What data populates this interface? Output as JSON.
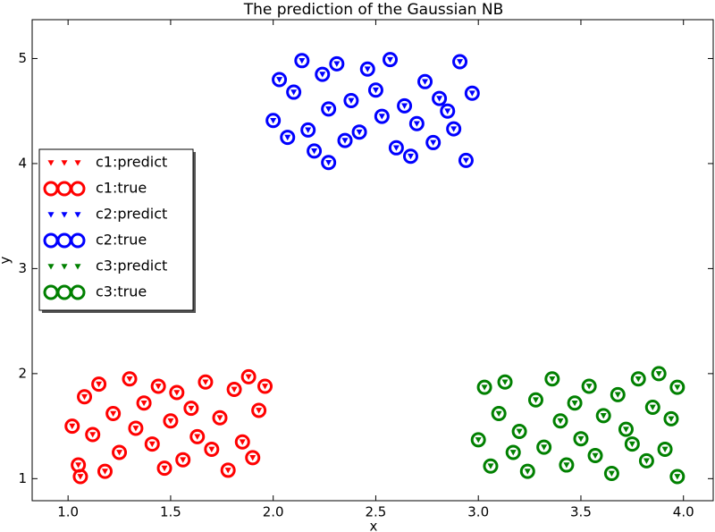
{
  "chart_data": {
    "type": "scatter",
    "title": "The prediction of the Gaussian NB",
    "x_label": "x",
    "y_label": "y",
    "xlim": [
      0.825,
      4.145
    ],
    "ylim": [
      0.79,
      5.37
    ],
    "xticks": [
      {
        "value": 1.0,
        "label": "1.0"
      },
      {
        "value": 1.5,
        "label": "1.5"
      },
      {
        "value": 2.0,
        "label": "2.0"
      },
      {
        "value": 2.5,
        "label": "2.5"
      },
      {
        "value": 3.0,
        "label": "3.0"
      },
      {
        "value": 3.5,
        "label": "3.5"
      },
      {
        "value": 4.0,
        "label": "4.0"
      }
    ],
    "yticks": [
      1,
      2,
      3,
      4,
      5
    ],
    "grid": false,
    "legend": "center left",
    "series": [
      {
        "name": "c1:predict",
        "color": "#ff0000",
        "marker": "v",
        "x": [
          1.02,
          1.05,
          1.08,
          1.12,
          1.15,
          1.18,
          1.22,
          1.25,
          1.3,
          1.33,
          1.37,
          1.41,
          1.44,
          1.47,
          1.5,
          1.53,
          1.56,
          1.6,
          1.63,
          1.67,
          1.7,
          1.74,
          1.78,
          1.81,
          1.85,
          1.88,
          1.9,
          1.93,
          1.96,
          1.06
        ],
        "values": [
          1.5,
          1.13,
          1.78,
          1.42,
          1.9,
          1.07,
          1.62,
          1.25,
          1.95,
          1.48,
          1.72,
          1.33,
          1.88,
          1.1,
          1.55,
          1.82,
          1.18,
          1.67,
          1.4,
          1.92,
          1.28,
          1.58,
          1.08,
          1.85,
          1.35,
          1.97,
          1.2,
          1.65,
          1.88,
          1.02
        ]
      },
      {
        "name": "c1:true",
        "color": "#ff0000",
        "marker": "o",
        "x": [
          1.02,
          1.05,
          1.08,
          1.12,
          1.15,
          1.18,
          1.22,
          1.25,
          1.3,
          1.33,
          1.37,
          1.41,
          1.44,
          1.47,
          1.5,
          1.53,
          1.56,
          1.6,
          1.63,
          1.67,
          1.7,
          1.74,
          1.78,
          1.81,
          1.85,
          1.88,
          1.9,
          1.93,
          1.96,
          1.06
        ],
        "values": [
          1.5,
          1.13,
          1.78,
          1.42,
          1.9,
          1.07,
          1.62,
          1.25,
          1.95,
          1.48,
          1.72,
          1.33,
          1.88,
          1.1,
          1.55,
          1.82,
          1.18,
          1.67,
          1.4,
          1.92,
          1.28,
          1.58,
          1.08,
          1.85,
          1.35,
          1.97,
          1.2,
          1.65,
          1.88,
          1.02
        ]
      },
      {
        "name": "c2:predict",
        "color": "#0000ff",
        "marker": "v",
        "x": [
          2.0,
          2.03,
          2.07,
          2.1,
          2.14,
          2.17,
          2.2,
          2.24,
          2.27,
          2.31,
          2.35,
          2.38,
          2.42,
          2.46,
          2.5,
          2.53,
          2.57,
          2.6,
          2.64,
          2.67,
          2.7,
          2.74,
          2.78,
          2.81,
          2.85,
          2.88,
          2.91,
          2.94,
          2.97,
          2.27
        ],
        "values": [
          4.41,
          4.8,
          4.25,
          4.68,
          4.98,
          4.32,
          4.12,
          4.85,
          4.52,
          4.95,
          4.22,
          4.6,
          4.3,
          4.9,
          4.7,
          4.45,
          4.99,
          4.15,
          4.55,
          4.07,
          4.38,
          4.78,
          4.2,
          4.62,
          4.5,
          4.33,
          4.97,
          4.03,
          4.67,
          4.01
        ]
      },
      {
        "name": "c2:true",
        "color": "#0000ff",
        "marker": "o",
        "x": [
          2.0,
          2.03,
          2.07,
          2.1,
          2.14,
          2.17,
          2.2,
          2.24,
          2.27,
          2.31,
          2.35,
          2.38,
          2.42,
          2.46,
          2.5,
          2.53,
          2.57,
          2.6,
          2.64,
          2.67,
          2.7,
          2.74,
          2.78,
          2.81,
          2.85,
          2.88,
          2.91,
          2.94,
          2.97,
          2.27
        ],
        "values": [
          4.41,
          4.8,
          4.25,
          4.68,
          4.98,
          4.32,
          4.12,
          4.85,
          4.52,
          4.95,
          4.22,
          4.6,
          4.3,
          4.9,
          4.7,
          4.45,
          4.99,
          4.15,
          4.55,
          4.07,
          4.38,
          4.78,
          4.2,
          4.62,
          4.5,
          4.33,
          4.97,
          4.03,
          4.67,
          4.01
        ]
      },
      {
        "name": "c3:predict",
        "color": "#008000",
        "marker": "v",
        "x": [
          3.0,
          3.03,
          3.06,
          3.1,
          3.13,
          3.17,
          3.2,
          3.24,
          3.28,
          3.32,
          3.36,
          3.4,
          3.43,
          3.47,
          3.5,
          3.54,
          3.57,
          3.61,
          3.65,
          3.68,
          3.72,
          3.75,
          3.78,
          3.82,
          3.85,
          3.88,
          3.91,
          3.94,
          3.97,
          3.97
        ],
        "values": [
          1.37,
          1.87,
          1.12,
          1.62,
          1.92,
          1.25,
          1.45,
          1.07,
          1.75,
          1.3,
          1.95,
          1.55,
          1.13,
          1.72,
          1.38,
          1.88,
          1.22,
          1.6,
          1.05,
          1.8,
          1.47,
          1.33,
          1.95,
          1.17,
          1.68,
          2.0,
          1.28,
          1.57,
          1.87,
          1.02
        ]
      },
      {
        "name": "c3:true",
        "color": "#008000",
        "marker": "o",
        "x": [
          3.0,
          3.03,
          3.06,
          3.1,
          3.13,
          3.17,
          3.2,
          3.24,
          3.28,
          3.32,
          3.36,
          3.4,
          3.43,
          3.47,
          3.5,
          3.54,
          3.57,
          3.61,
          3.65,
          3.68,
          3.72,
          3.75,
          3.78,
          3.82,
          3.85,
          3.88,
          3.91,
          3.94,
          3.97,
          3.97
        ],
        "values": [
          1.37,
          1.87,
          1.12,
          1.62,
          1.92,
          1.25,
          1.45,
          1.07,
          1.75,
          1.3,
          1.95,
          1.55,
          1.13,
          1.72,
          1.38,
          1.88,
          1.22,
          1.6,
          1.05,
          1.8,
          1.47,
          1.33,
          1.95,
          1.17,
          1.68,
          2.0,
          1.28,
          1.57,
          1.87,
          1.02
        ]
      }
    ]
  }
}
